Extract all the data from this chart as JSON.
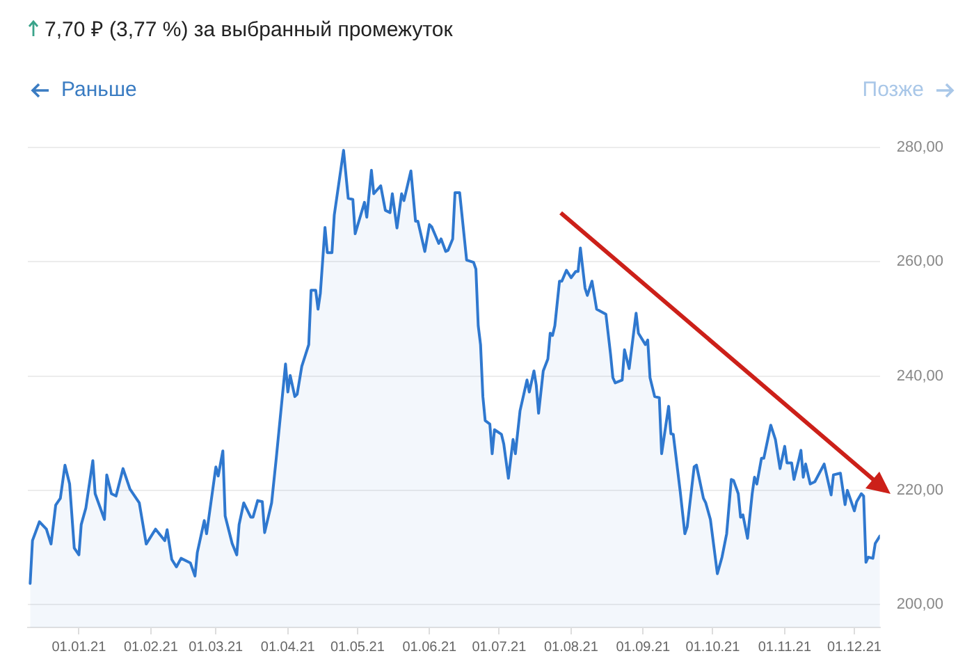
{
  "chart_data": {
    "type": "area",
    "title": "7,70 ₽ (3,77 %) за выбранный промежуток",
    "annotations": [
      "Раньше",
      "Позже"
    ],
    "color": "#2f78cf",
    "grid": "y",
    "xlim": [
      "2020-12-10",
      "2021-12-12"
    ],
    "xticks": [
      {
        "value": "2021-01-01",
        "label": "01.01.21"
      },
      {
        "value": "2021-02-01",
        "label": "01.02.21"
      },
      {
        "value": "2021-03-01",
        "label": "01.03.21"
      },
      {
        "value": "2021-04-01",
        "label": "01.04.21"
      },
      {
        "value": "2021-05-01",
        "label": "01.05.21"
      },
      {
        "value": "2021-06-01",
        "label": "01.06.21"
      },
      {
        "value": "2021-07-01",
        "label": "01.07.21"
      },
      {
        "value": "2021-08-01",
        "label": "01.08.21"
      },
      {
        "value": "2021-09-01",
        "label": "01.09.21"
      },
      {
        "value": "2021-10-01",
        "label": "01.10.21"
      },
      {
        "value": "2021-11-01",
        "label": "01.11.21"
      },
      {
        "value": "2021-12-01",
        "label": "01.12.21"
      }
    ],
    "ylim": [
      196,
      280
    ],
    "yticks": [
      {
        "value": 200,
        "label": "200,00"
      },
      {
        "value": 220,
        "label": "220,00"
      },
      {
        "value": 240,
        "label": "240,00"
      },
      {
        "value": 260,
        "label": "260,00"
      },
      {
        "value": 280,
        "label": "280,00"
      }
    ],
    "x": [
      "2020-12-11",
      "2020-12-12",
      "2020-12-15",
      "2020-12-18",
      "2020-12-20",
      "2020-12-22",
      "2020-12-24",
      "2020-12-26",
      "2020-12-28",
      "2020-12-30",
      "2021-01-01",
      "2021-01-02",
      "2021-01-04",
      "2021-01-07",
      "2021-01-08",
      "2021-01-12",
      "2021-01-13",
      "2021-01-15",
      "2021-01-17",
      "2021-01-20",
      "2021-01-23",
      "2021-01-27",
      "2021-01-30",
      "2021-02-03",
      "2021-02-07",
      "2021-02-08",
      "2021-02-10",
      "2021-02-12",
      "2021-02-14",
      "2021-02-18",
      "2021-02-20",
      "2021-02-21",
      "2021-02-24",
      "2021-02-25",
      "2021-03-01",
      "2021-03-02",
      "2021-03-04",
      "2021-03-05",
      "2021-03-08",
      "2021-03-10",
      "2021-03-11",
      "2021-03-13",
      "2021-03-16",
      "2021-03-17",
      "2021-03-19",
      "2021-03-21",
      "2021-03-22",
      "2021-03-25",
      "2021-03-27",
      "2021-03-31",
      "2021-04-01",
      "2021-04-02",
      "2021-04-04",
      "2021-04-05",
      "2021-04-07",
      "2021-04-10",
      "2021-04-11",
      "2021-04-13",
      "2021-04-14",
      "2021-04-15",
      "2021-04-17",
      "2021-04-18",
      "2021-04-20",
      "2021-04-21",
      "2021-04-25",
      "2021-04-27",
      "2021-04-29",
      "2021-04-30",
      "2021-05-04",
      "2021-05-05",
      "2021-05-07",
      "2021-05-08",
      "2021-05-11",
      "2021-05-13",
      "2021-05-15",
      "2021-05-16",
      "2021-05-18",
      "2021-05-20",
      "2021-05-21",
      "2021-05-24",
      "2021-05-26",
      "2021-05-27",
      "2021-05-30",
      "2021-06-01",
      "2021-06-02",
      "2021-06-05",
      "2021-06-06",
      "2021-06-08",
      "2021-06-09",
      "2021-06-11",
      "2021-06-12",
      "2021-06-14",
      "2021-06-17",
      "2021-06-20",
      "2021-06-21",
      "2021-06-22",
      "2021-06-23",
      "2021-06-24",
      "2021-06-25",
      "2021-06-27",
      "2021-06-28",
      "2021-06-29",
      "2021-07-02",
      "2021-07-03",
      "2021-07-05",
      "2021-07-07",
      "2021-07-08",
      "2021-07-10",
      "2021-07-13",
      "2021-07-14",
      "2021-07-16",
      "2021-07-17",
      "2021-07-18",
      "2021-07-20",
      "2021-07-22",
      "2021-07-23",
      "2021-07-24",
      "2021-07-25",
      "2021-07-27",
      "2021-07-28",
      "2021-07-30",
      "2021-08-01",
      "2021-08-03",
      "2021-08-04",
      "2021-08-05",
      "2021-08-07",
      "2021-08-08",
      "2021-08-10",
      "2021-08-12",
      "2021-08-16",
      "2021-08-18",
      "2021-08-19",
      "2021-08-20",
      "2021-08-23",
      "2021-08-24",
      "2021-08-26",
      "2021-08-29",
      "2021-08-30",
      "2021-09-02",
      "2021-09-03",
      "2021-09-04",
      "2021-09-06",
      "2021-09-08",
      "2021-09-09",
      "2021-09-12",
      "2021-09-13",
      "2021-09-14",
      "2021-09-17",
      "2021-09-19",
      "2021-09-20",
      "2021-09-23",
      "2021-09-24",
      "2021-09-27",
      "2021-09-28",
      "2021-09-30",
      "2021-10-03",
      "2021-10-05",
      "2021-10-07",
      "2021-10-09",
      "2021-10-10",
      "2021-10-12",
      "2021-10-13",
      "2021-10-14",
      "2021-10-16",
      "2021-10-18",
      "2021-10-19",
      "2021-10-20",
      "2021-10-22",
      "2021-10-23",
      "2021-10-26",
      "2021-10-28",
      "2021-10-30",
      "2021-11-01",
      "2021-11-02",
      "2021-11-04",
      "2021-11-05",
      "2021-11-07",
      "2021-11-08",
      "2021-11-09",
      "2021-11-10",
      "2021-11-12",
      "2021-11-14",
      "2021-11-18",
      "2021-11-21",
      "2021-11-22",
      "2021-11-25",
      "2021-11-27",
      "2021-11-28",
      "2021-12-01",
      "2021-12-02",
      "2021-12-04",
      "2021-12-05",
      "2021-12-06",
      "2021-12-07",
      "2021-12-09",
      "2021-12-10",
      "2021-12-12"
    ],
    "values": [
      203.7,
      211.2,
      214.5,
      213.2,
      210.6,
      217.4,
      218.6,
      224.4,
      221.1,
      209.9,
      208.7,
      214.0,
      216.9,
      225.2,
      219.4,
      214.9,
      222.7,
      219.4,
      219.0,
      223.8,
      220.2,
      217.8,
      210.6,
      213.2,
      211.2,
      213.1,
      207.9,
      206.6,
      208.1,
      207.3,
      205.0,
      209.1,
      214.7,
      212.4,
      224.1,
      222.5,
      226.9,
      215.5,
      210.7,
      208.7,
      214.0,
      217.8,
      215.3,
      215.3,
      218.2,
      218.0,
      212.6,
      217.8,
      225.6,
      242.1,
      237.2,
      240.1,
      236.4,
      236.8,
      241.7,
      245.5,
      255.0,
      255.0,
      251.7,
      254.5,
      266.0,
      261.6,
      261.6,
      268.2,
      279.5,
      271.1,
      270.9,
      264.9,
      270.4,
      267.8,
      276.0,
      271.9,
      273.3,
      269.0,
      268.6,
      271.9,
      265.9,
      271.9,
      270.7,
      275.9,
      267.1,
      267.1,
      261.8,
      266.5,
      266.1,
      263.2,
      264.0,
      261.8,
      262.0,
      264.0,
      272.1,
      272.1,
      260.3,
      259.9,
      258.7,
      248.8,
      245.5,
      236.4,
      232.2,
      231.6,
      226.4,
      230.6,
      229.8,
      228.1,
      222.1,
      228.9,
      226.4,
      233.9,
      239.3,
      237.2,
      240.9,
      238.4,
      233.5,
      240.9,
      243.0,
      247.5,
      247.1,
      248.8,
      256.6,
      256.6,
      258.5,
      257.2,
      258.3,
      258.3,
      262.4,
      255.4,
      254.1,
      256.6,
      251.7,
      250.8,
      243.8,
      239.7,
      238.8,
      239.3,
      244.6,
      241.3,
      251.0,
      247.5,
      245.5,
      246.3,
      239.7,
      236.4,
      236.2,
      226.4,
      234.7,
      229.9,
      229.8,
      219.8,
      212.4,
      213.6,
      224.1,
      224.4,
      218.6,
      217.8,
      214.9,
      205.4,
      208.3,
      212.4,
      221.9,
      221.7,
      219.4,
      215.3,
      215.7,
      211.6,
      219.4,
      222.3,
      221.1,
      225.6,
      225.6,
      231.4,
      228.9,
      223.8,
      227.7,
      224.8,
      224.8,
      221.9,
      225.2,
      227.0,
      222.3,
      224.6,
      221.1,
      221.5,
      224.6,
      219.2,
      222.7,
      223.0,
      217.5,
      220.0,
      216.4,
      218.0,
      219.4,
      219.0,
      207.4,
      208.3,
      208.1,
      210.7,
      212.0
    ]
  }
}
